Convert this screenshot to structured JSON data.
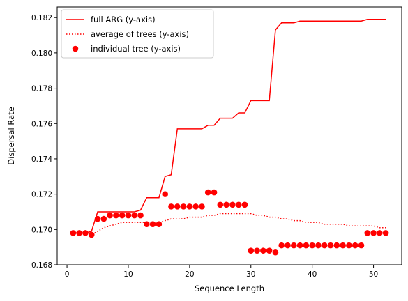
{
  "chart_data": {
    "type": "line",
    "xlabel": "Sequence Length",
    "ylabel": "Dispersal Rate",
    "xlim": [
      -1.6,
      54.6
    ],
    "ylim": [
      0.168,
      0.1826
    ],
    "xticks": [
      0,
      10,
      20,
      30,
      40,
      50
    ],
    "yticks": [
      0.168,
      0.17,
      0.172,
      0.174,
      0.176,
      0.178,
      0.18,
      0.182
    ],
    "grid": false,
    "legend_position": "upper-left",
    "series": [
      {
        "name": "full ARG (y-axis)",
        "style": "solid-line",
        "color": "#ff0000",
        "x": [
          1,
          2,
          3,
          4,
          5,
          6,
          7,
          8,
          9,
          10,
          11,
          12,
          13,
          14,
          15,
          16,
          17,
          18,
          19,
          20,
          21,
          22,
          23,
          24,
          25,
          26,
          27,
          28,
          29,
          30,
          31,
          32,
          33,
          34,
          35,
          36,
          37,
          38,
          39,
          40,
          41,
          42,
          43,
          44,
          45,
          46,
          47,
          48,
          49,
          50,
          51,
          52
        ],
        "y": [
          0.1698,
          0.1698,
          0.1698,
          0.1699,
          0.171,
          0.171,
          0.171,
          0.171,
          0.171,
          0.171,
          0.171,
          0.1711,
          0.1718,
          0.1718,
          0.1718,
          0.173,
          0.1731,
          0.1757,
          0.1757,
          0.1757,
          0.1757,
          0.1757,
          0.1759,
          0.1759,
          0.1763,
          0.1763,
          0.1763,
          0.1766,
          0.1766,
          0.1773,
          0.1773,
          0.1773,
          0.1773,
          0.1813,
          0.1817,
          0.1817,
          0.1817,
          0.1818,
          0.1818,
          0.1818,
          0.1818,
          0.1818,
          0.1818,
          0.1818,
          0.1818,
          0.1818,
          0.1818,
          0.1818,
          0.1819,
          0.1819,
          0.1819,
          0.1819
        ]
      },
      {
        "name": "average of trees (y-axis)",
        "style": "dotted-line",
        "color": "#ff0000",
        "x": [
          1,
          2,
          3,
          4,
          5,
          6,
          7,
          8,
          9,
          10,
          11,
          12,
          13,
          14,
          15,
          16,
          17,
          18,
          19,
          20,
          21,
          22,
          23,
          24,
          25,
          26,
          27,
          28,
          29,
          30,
          31,
          32,
          33,
          34,
          35,
          36,
          37,
          38,
          39,
          40,
          41,
          42,
          43,
          44,
          45,
          46,
          47,
          48,
          49,
          50,
          51,
          52
        ],
        "y": [
          0.1698,
          0.1698,
          0.1698,
          0.1697,
          0.1699,
          0.1701,
          0.1702,
          0.1703,
          0.1704,
          0.1704,
          0.1704,
          0.1704,
          0.1704,
          0.1704,
          0.1704,
          0.1705,
          0.1706,
          0.1706,
          0.1706,
          0.1707,
          0.1707,
          0.1707,
          0.1708,
          0.1708,
          0.1709,
          0.1709,
          0.1709,
          0.1709,
          0.1709,
          0.1709,
          0.1708,
          0.1708,
          0.1707,
          0.1707,
          0.1706,
          0.1706,
          0.1705,
          0.1705,
          0.1704,
          0.1704,
          0.1704,
          0.1703,
          0.1703,
          0.1703,
          0.1703,
          0.1702,
          0.1702,
          0.1702,
          0.1702,
          0.1702,
          0.1701,
          0.1701
        ]
      },
      {
        "name": "individual tree (y-axis)",
        "style": "scatter",
        "color": "#ff0000",
        "x": [
          1,
          2,
          3,
          4,
          5,
          6,
          7,
          8,
          9,
          10,
          11,
          12,
          13,
          14,
          15,
          16,
          17,
          18,
          19,
          20,
          21,
          22,
          23,
          24,
          25,
          26,
          27,
          28,
          29,
          30,
          31,
          32,
          33,
          34,
          35,
          36,
          37,
          38,
          39,
          40,
          41,
          42,
          43,
          44,
          45,
          46,
          47,
          48,
          49,
          50,
          51,
          52
        ],
        "y": [
          0.1698,
          0.1698,
          0.1698,
          0.1697,
          0.1706,
          0.1706,
          0.1708,
          0.1708,
          0.1708,
          0.1708,
          0.1708,
          0.1708,
          0.1703,
          0.1703,
          0.1703,
          0.172,
          0.1713,
          0.1713,
          0.1713,
          0.1713,
          0.1713,
          0.1713,
          0.1721,
          0.1721,
          0.1714,
          0.1714,
          0.1714,
          0.1714,
          0.1714,
          0.1688,
          0.1688,
          0.1688,
          0.1688,
          0.1687,
          0.1691,
          0.1691,
          0.1691,
          0.1691,
          0.1691,
          0.1691,
          0.1691,
          0.1691,
          0.1691,
          0.1691,
          0.1691,
          0.1691,
          0.1691,
          0.1691,
          0.1698,
          0.1698,
          0.1698,
          0.1698
        ]
      }
    ]
  }
}
